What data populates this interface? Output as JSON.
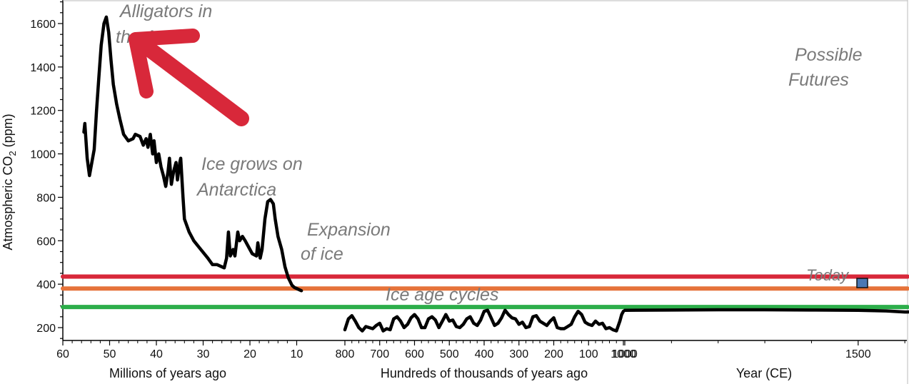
{
  "chart_data": {
    "type": "line",
    "ylabel": "Atmospheric CO",
    "ylabel_sub": "2",
    "ylabel_unit": " (ppm)",
    "ylim": [
      150,
      1700
    ],
    "yticks": [
      200,
      400,
      600,
      800,
      1000,
      1200,
      1400,
      1600
    ],
    "panels": [
      {
        "xlabel": "Millions of years ago",
        "xlim": [
          60,
          10
        ],
        "xticks": [
          "60",
          "50",
          "40",
          "30",
          "20",
          "10"
        ],
        "xticks_values": [
          60,
          50,
          40,
          30,
          20,
          10
        ]
      },
      {
        "xlabel": "Hundreds of thousands of years ago",
        "xlim": [
          800,
          1000
        ],
        "xticks": [
          "800",
          "700",
          "600",
          "500",
          "400",
          "300",
          "200",
          "100",
          "1000"
        ],
        "xticks_values": [
          800,
          700,
          600,
          500,
          400,
          300,
          200,
          100,
          0
        ]
      },
      {
        "xlabel": "Year (CE)",
        "xlim": [
          1000,
          2100
        ],
        "xticks": [
          "1000",
          "1500",
          "2000"
        ],
        "xticks_values": [
          1000,
          1500,
          2000
        ]
      }
    ],
    "series": [
      {
        "panel": 0,
        "color": "#000000",
        "points": [
          [
            55.5,
            1100
          ],
          [
            55.3,
            1140
          ],
          [
            54.8,
            980
          ],
          [
            54.3,
            900
          ],
          [
            53.8,
            960
          ],
          [
            53.3,
            1020
          ],
          [
            52.8,
            1200
          ],
          [
            52.3,
            1350
          ],
          [
            51.8,
            1500
          ],
          [
            51.2,
            1600
          ],
          [
            50.7,
            1630
          ],
          [
            50.2,
            1560
          ],
          [
            49.7,
            1430
          ],
          [
            49.2,
            1320
          ],
          [
            48.5,
            1230
          ],
          [
            47.8,
            1160
          ],
          [
            47,
            1090
          ],
          [
            46,
            1060
          ],
          [
            45,
            1070
          ],
          [
            44.5,
            1090
          ],
          [
            43.5,
            1080
          ],
          [
            42.8,
            1040
          ],
          [
            42.2,
            1070
          ],
          [
            41.8,
            1030
          ],
          [
            41.3,
            1090
          ],
          [
            40.8,
            1000
          ],
          [
            40.5,
            1060
          ],
          [
            40,
            960
          ],
          [
            39.5,
            1000
          ],
          [
            39,
            940
          ],
          [
            38.5,
            900
          ],
          [
            38,
            850
          ],
          [
            37.5,
            920
          ],
          [
            37.2,
            980
          ],
          [
            36.8,
            860
          ],
          [
            36.3,
            920
          ],
          [
            35.8,
            960
          ],
          [
            35.5,
            880
          ],
          [
            35,
            960
          ],
          [
            34.8,
            980
          ],
          [
            34.3,
            800
          ],
          [
            34,
            700
          ],
          [
            33,
            640
          ],
          [
            32,
            600
          ],
          [
            30.5,
            560
          ],
          [
            29,
            520
          ],
          [
            28,
            490
          ],
          [
            27,
            490
          ],
          [
            25.5,
            475
          ],
          [
            25,
            520
          ],
          [
            24.6,
            640
          ],
          [
            24.2,
            530
          ],
          [
            23.6,
            560
          ],
          [
            23.2,
            530
          ],
          [
            22.6,
            640
          ],
          [
            22.2,
            600
          ],
          [
            21.6,
            620
          ],
          [
            21,
            600
          ],
          [
            20,
            560
          ],
          [
            19.5,
            540
          ],
          [
            18.6,
            530
          ],
          [
            18.3,
            590
          ],
          [
            17.8,
            520
          ],
          [
            17.4,
            560
          ],
          [
            16.8,
            700
          ],
          [
            16.2,
            780
          ],
          [
            15.6,
            790
          ],
          [
            15,
            770
          ],
          [
            14.6,
            700
          ],
          [
            14,
            620
          ],
          [
            13.2,
            560
          ],
          [
            12.5,
            480
          ],
          [
            11.8,
            430
          ],
          [
            11,
            395
          ],
          [
            10.5,
            385
          ],
          [
            10,
            380
          ],
          [
            9.5,
            375
          ],
          [
            9,
            370
          ]
        ]
      },
      {
        "panel": 1,
        "color": "#000000",
        "points": [
          [
            800,
            190
          ],
          [
            795,
            215
          ],
          [
            790,
            240
          ],
          [
            780,
            255
          ],
          [
            770,
            230
          ],
          [
            760,
            200
          ],
          [
            750,
            185
          ],
          [
            740,
            205
          ],
          [
            730,
            200
          ],
          [
            720,
            195
          ],
          [
            710,
            210
          ],
          [
            700,
            220
          ],
          [
            690,
            185
          ],
          [
            680,
            195
          ],
          [
            670,
            190
          ],
          [
            660,
            240
          ],
          [
            650,
            250
          ],
          [
            640,
            230
          ],
          [
            630,
            200
          ],
          [
            620,
            215
          ],
          [
            610,
            245
          ],
          [
            600,
            260
          ],
          [
            590,
            240
          ],
          [
            580,
            200
          ],
          [
            570,
            200
          ],
          [
            560,
            240
          ],
          [
            550,
            250
          ],
          [
            540,
            235
          ],
          [
            530,
            200
          ],
          [
            520,
            230
          ],
          [
            510,
            260
          ],
          [
            500,
            230
          ],
          [
            490,
            235
          ],
          [
            480,
            205
          ],
          [
            470,
            200
          ],
          [
            460,
            215
          ],
          [
            450,
            240
          ],
          [
            440,
            250
          ],
          [
            430,
            220
          ],
          [
            420,
            210
          ],
          [
            410,
            235
          ],
          [
            400,
            275
          ],
          [
            390,
            280
          ],
          [
            380,
            245
          ],
          [
            370,
            210
          ],
          [
            360,
            220
          ],
          [
            350,
            245
          ],
          [
            340,
            280
          ],
          [
            330,
            260
          ],
          [
            320,
            245
          ],
          [
            310,
            240
          ],
          [
            300,
            215
          ],
          [
            290,
            225
          ],
          [
            280,
            200
          ],
          [
            270,
            205
          ],
          [
            260,
            250
          ],
          [
            250,
            255
          ],
          [
            240,
            230
          ],
          [
            230,
            220
          ],
          [
            220,
            210
          ],
          [
            210,
            230
          ],
          [
            200,
            245
          ],
          [
            190,
            200
          ],
          [
            180,
            195
          ],
          [
            170,
            195
          ],
          [
            160,
            205
          ],
          [
            150,
            215
          ],
          [
            140,
            250
          ],
          [
            130,
            275
          ],
          [
            120,
            260
          ],
          [
            110,
            225
          ],
          [
            100,
            215
          ],
          [
            90,
            210
          ],
          [
            80,
            230
          ],
          [
            70,
            215
          ],
          [
            60,
            220
          ],
          [
            50,
            195
          ],
          [
            40,
            200
          ],
          [
            30,
            190
          ],
          [
            20,
            185
          ],
          [
            10,
            230
          ],
          [
            5,
            260
          ],
          [
            0,
            275
          ]
        ]
      },
      {
        "panel": 2,
        "color": "#000000",
        "points": [
          [
            1000,
            280
          ],
          [
            1100,
            281
          ],
          [
            1200,
            282
          ],
          [
            1300,
            282
          ],
          [
            1400,
            281
          ],
          [
            1500,
            280
          ],
          [
            1560,
            277
          ],
          [
            1600,
            272
          ],
          [
            1650,
            273
          ],
          [
            1700,
            276
          ],
          [
            1750,
            278
          ],
          [
            1800,
            283
          ],
          [
            1850,
            287
          ],
          [
            1880,
            291
          ],
          [
            1900,
            296
          ],
          [
            1920,
            303
          ],
          [
            1940,
            310
          ],
          [
            1950,
            311
          ],
          [
            1960,
            317
          ],
          [
            1970,
            325
          ],
          [
            1980,
            338
          ],
          [
            1990,
            354
          ],
          [
            2000,
            369
          ],
          [
            2010,
            389
          ],
          [
            2015,
            400
          ]
        ]
      },
      {
        "panel": 2,
        "color": "#a82422",
        "points": [
          [
            2015,
            400
          ],
          [
            2030,
            500
          ],
          [
            2045,
            750
          ],
          [
            2060,
            1100
          ],
          [
            2075,
            1450
          ],
          [
            2085,
            1700
          ]
        ]
      },
      {
        "panel": 2,
        "color": "#e7332a",
        "points": [
          [
            2015,
            400
          ],
          [
            2025,
            460
          ],
          [
            2035,
            570
          ],
          [
            2045,
            640
          ],
          [
            2060,
            700
          ],
          [
            2075,
            750
          ],
          [
            2090,
            780
          ],
          [
            2100,
            790
          ]
        ]
      },
      {
        "panel": 2,
        "color": "#f0a03a",
        "points": [
          [
            2015,
            400
          ],
          [
            2025,
            450
          ],
          [
            2035,
            520
          ],
          [
            2045,
            590
          ],
          [
            2060,
            610
          ],
          [
            2080,
            630
          ],
          [
            2100,
            645
          ]
        ]
      },
      {
        "panel": 2,
        "color": "#b88a1e",
        "points": [
          [
            2015,
            400
          ],
          [
            2025,
            440
          ],
          [
            2035,
            470
          ],
          [
            2045,
            470
          ],
          [
            2055,
            450
          ],
          [
            2065,
            425
          ],
          [
            2080,
            410
          ],
          [
            2100,
            405
          ]
        ]
      }
    ],
    "hlines": [
      {
        "value": 435,
        "color": "#d8283a"
      },
      {
        "value": 380,
        "color": "#e6733a"
      },
      {
        "value": 295,
        "color": "#2cae4a"
      }
    ],
    "annotations": {
      "alligators_line1": "Alligators in",
      "alligators_line2": "the Arctic",
      "ice_grows_line1": "Ice grows on",
      "ice_grows_line2": "Antarctica",
      "expansion_line1": "Expansion",
      "expansion_line2": "of ice",
      "ice_age": "Ice age cycles",
      "today": "Today",
      "futures_line1": "Possible",
      "futures_line2": "Futures"
    },
    "colors": {
      "arrow": "#d8283a",
      "today_marker": "#4a78b4",
      "annotation_text": "#7a7a7a"
    }
  }
}
